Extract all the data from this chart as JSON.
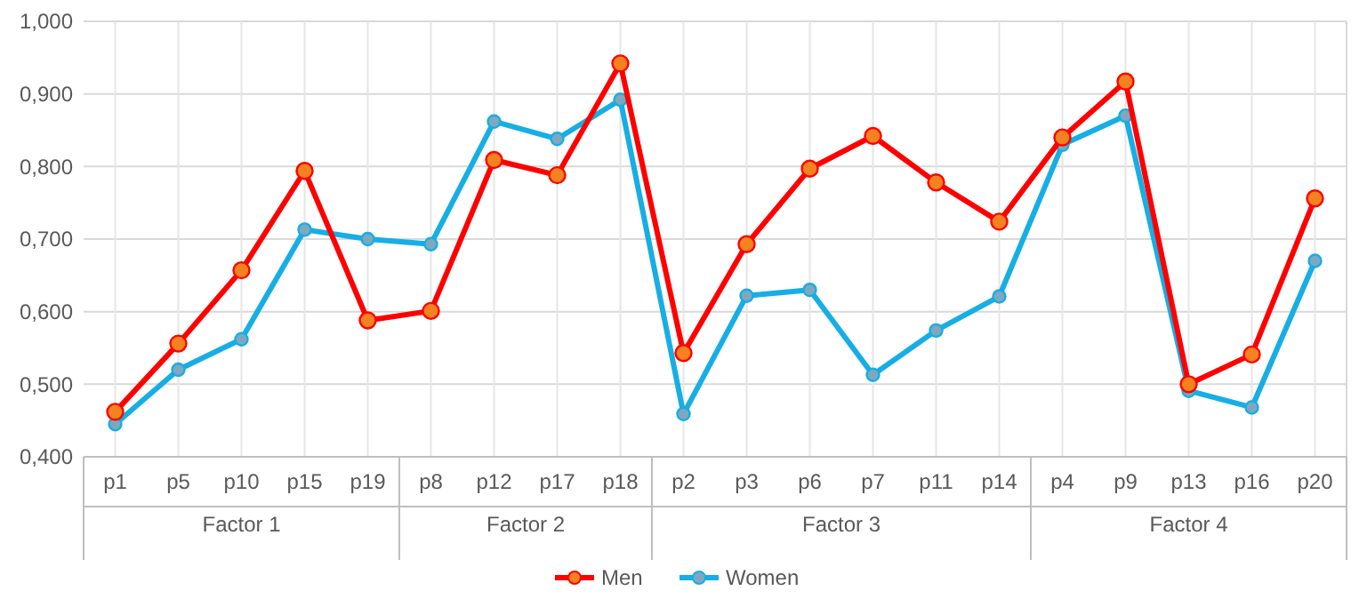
{
  "chart_data": {
    "type": "line",
    "categories": [
      "p1",
      "p5",
      "p10",
      "p15",
      "p19",
      "p8",
      "p12",
      "p17",
      "p18",
      "p2",
      "p3",
      "p6",
      "p7",
      "p11",
      "p14",
      "p4",
      "p9",
      "p13",
      "p16",
      "p20"
    ],
    "series": [
      {
        "name": "Men",
        "color": "#ff0000",
        "values": [
          0.462,
          0.556,
          0.657,
          0.794,
          0.588,
          0.601,
          0.809,
          0.788,
          0.942,
          0.543,
          0.693,
          0.797,
          0.842,
          0.778,
          0.724,
          0.84,
          0.917,
          0.5,
          0.541,
          0.756
        ]
      },
      {
        "name": "Women",
        "color": "#16aee4",
        "values": [
          0.445,
          0.52,
          0.562,
          0.713,
          0.7,
          0.693,
          0.862,
          0.838,
          0.892,
          0.459,
          0.622,
          0.63,
          0.513,
          0.574,
          0.621,
          0.83,
          0.87,
          0.491,
          0.468,
          0.67
        ]
      }
    ],
    "ylim": [
      0.4,
      1.0
    ],
    "yticks": [
      {
        "value": 0.4,
        "label": "0,400"
      },
      {
        "value": 0.5,
        "label": "0,500"
      },
      {
        "value": 0.6,
        "label": "0,600"
      },
      {
        "value": 0.7,
        "label": "0,700"
      },
      {
        "value": 0.8,
        "label": "0,800"
      },
      {
        "value": 0.9,
        "label": "0,900"
      },
      {
        "value": 1.0,
        "label": "1,000"
      }
    ],
    "annotations": [
      "Factor 1",
      "Factor 2",
      "Factor 3",
      "Factor 4"
    ],
    "grid": true,
    "legend": "bottom",
    "marker": "circle",
    "line_style": "solid"
  }
}
